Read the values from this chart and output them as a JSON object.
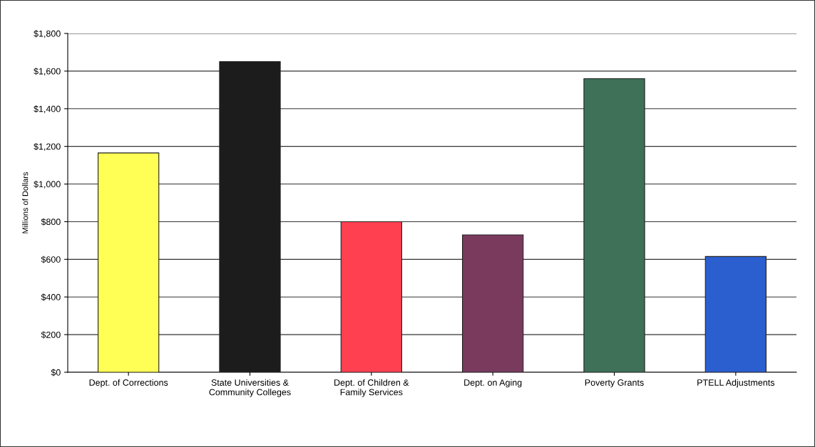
{
  "chart_data": {
    "type": "bar",
    "ylabel": "Millions of Dollars",
    "categories": [
      "Dept. of Corrections",
      "State Universities &\nCommunity Colleges",
      "Dept. of Children &\nFamily Services",
      "Dept. on Aging",
      "Poverty Grants",
      "PTELL Adjustments"
    ],
    "values": [
      1165,
      1650,
      800,
      730,
      1560,
      615
    ],
    "colors": [
      "#ffff55",
      "#1c1c1c",
      "#ff4050",
      "#7a3a5e",
      "#3f7058",
      "#2b5fd0"
    ],
    "ylim": [
      0,
      1800
    ],
    "yticks": [
      {
        "value": 0,
        "label": "$0"
      },
      {
        "value": 200,
        "label": "$200"
      },
      {
        "value": 400,
        "label": "$400"
      },
      {
        "value": 600,
        "label": "$600"
      },
      {
        "value": 800,
        "label": "$800"
      },
      {
        "value": 1000,
        "label": "$1,000"
      },
      {
        "value": 1200,
        "label": "$1,200"
      },
      {
        "value": 1400,
        "label": "$1,400"
      },
      {
        "value": 1600,
        "label": "$1,600"
      },
      {
        "value": 1800,
        "label": "$1,800"
      }
    ],
    "grid": "y"
  }
}
